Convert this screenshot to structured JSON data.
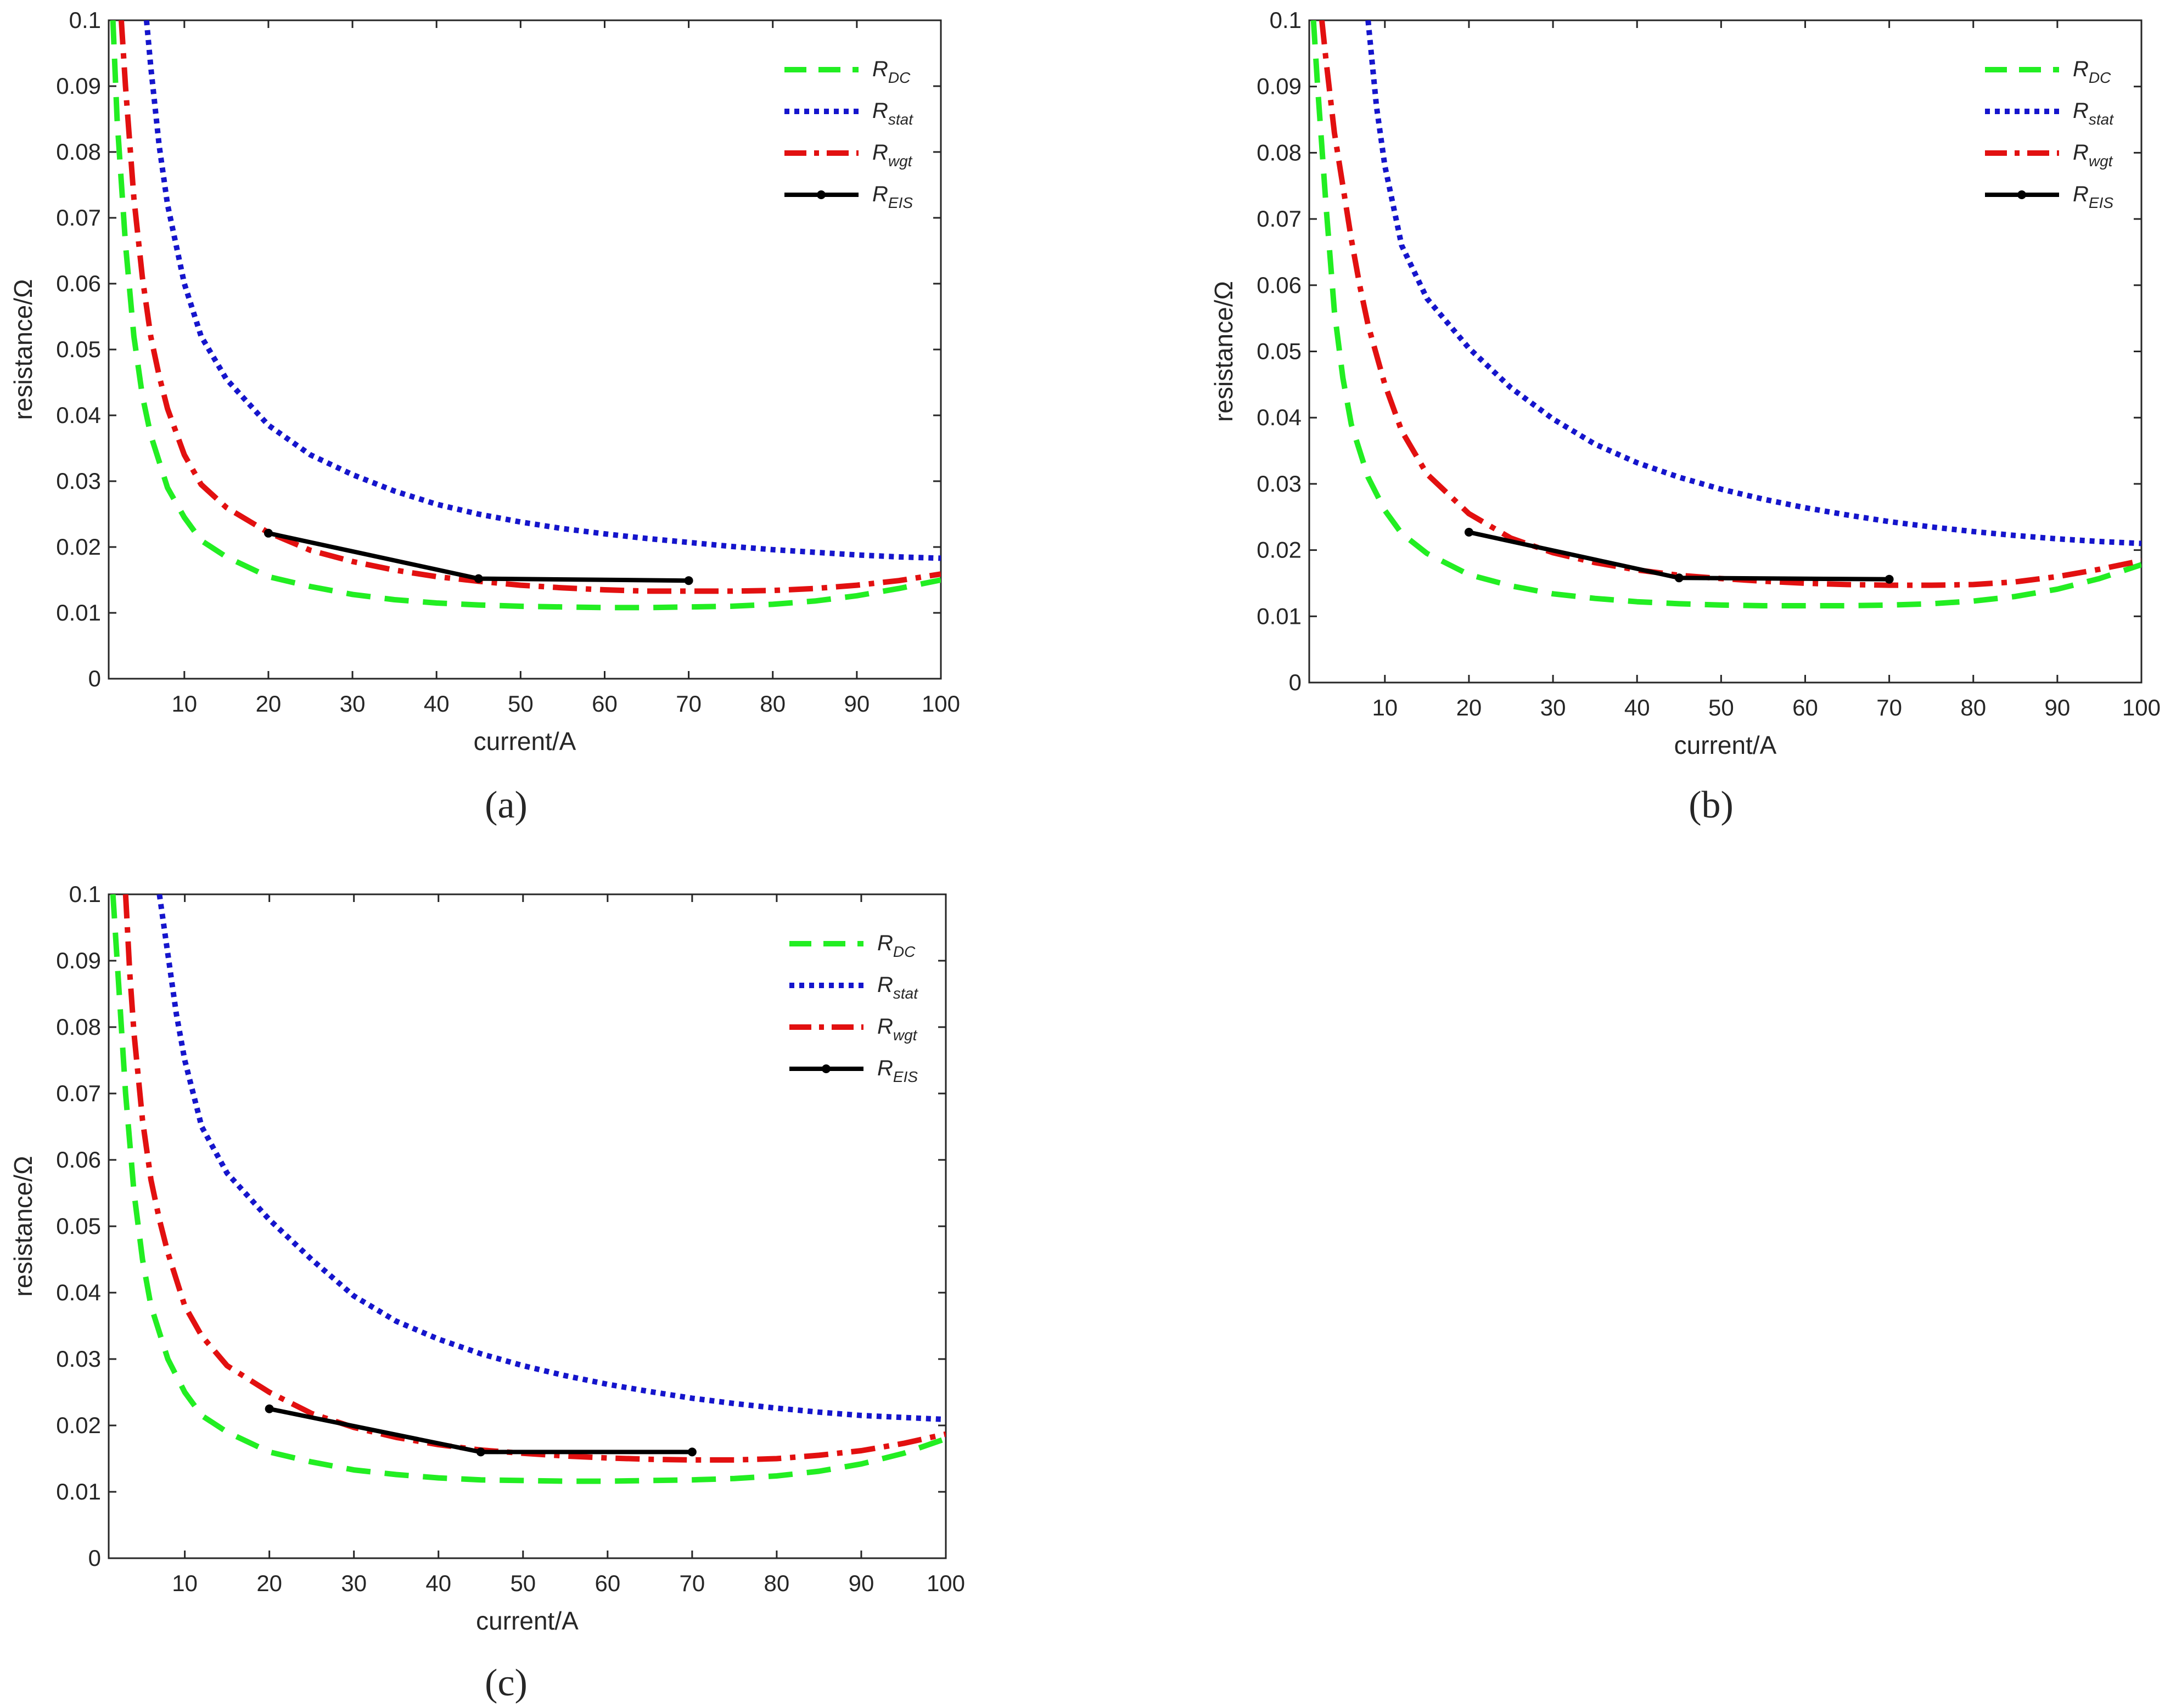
{
  "colors": {
    "R_DC": "#22ee22",
    "R_stat": "#1515cc",
    "R_wgt": "#e21010",
    "R_EIS": "#000000",
    "axis": "#262626"
  },
  "chart_data": [
    {
      "type": "line",
      "caption": "(a)",
      "xlabel": "current/A",
      "ylabel": "resistance/Ω",
      "xlim": [
        1,
        100
      ],
      "ylim": [
        0,
        0.1
      ],
      "xticks": [
        10,
        20,
        30,
        40,
        50,
        60,
        70,
        80,
        90,
        100
      ],
      "xtick_labels": [
        "10",
        "20",
        "30",
        "40",
        "50",
        "60",
        "70",
        "80",
        "90",
        "100"
      ],
      "yticks": [
        0,
        0.01,
        0.02,
        0.03,
        0.04,
        0.05,
        0.06,
        0.07,
        0.08,
        0.09,
        0.1
      ],
      "ytick_labels": [
        "0",
        "0.01",
        "0.02",
        "0.03",
        "0.04",
        "0.05",
        "0.06",
        "0.07",
        "0.08",
        "0.09",
        "0.1"
      ],
      "legend_position": "top-right",
      "series": [
        {
          "key": "R_DC",
          "main": "R",
          "sub": "DC",
          "style": "dashed",
          "x": [
            1.5,
            2,
            3,
            4,
            5,
            6,
            8,
            10,
            12,
            15,
            20,
            25,
            30,
            35,
            40,
            45,
            50,
            55,
            60,
            65,
            70,
            75,
            80,
            85,
            90,
            95,
            100
          ],
          "y": [
            0.1,
            0.085,
            0.066,
            0.052,
            0.043,
            0.037,
            0.029,
            0.0245,
            0.021,
            0.0185,
            0.0155,
            0.014,
            0.0128,
            0.012,
            0.0115,
            0.0112,
            0.011,
            0.0109,
            0.0108,
            0.0108,
            0.0109,
            0.011,
            0.0113,
            0.0118,
            0.0126,
            0.0137,
            0.015
          ]
        },
        {
          "key": "R_stat",
          "main": "R",
          "sub": "stat",
          "style": "dotted",
          "x": [
            5.5,
            6,
            7,
            8,
            10,
            12,
            15,
            20,
            25,
            30,
            35,
            40,
            45,
            50,
            55,
            60,
            65,
            70,
            75,
            80,
            85,
            90,
            95,
            100
          ],
          "y": [
            0.1,
            0.093,
            0.081,
            0.072,
            0.06,
            0.052,
            0.0455,
            0.0385,
            0.034,
            0.031,
            0.0285,
            0.0265,
            0.025,
            0.0238,
            0.0228,
            0.022,
            0.0213,
            0.0207,
            0.0201,
            0.0196,
            0.0192,
            0.0188,
            0.0185,
            0.0183
          ]
        },
        {
          "key": "R_wgt",
          "main": "R",
          "sub": "wgt",
          "style": "dashdot",
          "x": [
            2.5,
            3,
            4,
            5,
            6,
            7,
            8,
            10,
            12,
            15,
            20,
            25,
            30,
            35,
            40,
            45,
            50,
            55,
            60,
            65,
            70,
            75,
            80,
            85,
            90,
            95,
            100
          ],
          "y": [
            0.1,
            0.09,
            0.073,
            0.061,
            0.052,
            0.046,
            0.041,
            0.034,
            0.0295,
            0.026,
            0.0222,
            0.0195,
            0.0178,
            0.0165,
            0.0155,
            0.0148,
            0.0142,
            0.0138,
            0.0135,
            0.0133,
            0.0133,
            0.0133,
            0.0134,
            0.0137,
            0.0142,
            0.0149,
            0.0159
          ]
        },
        {
          "key": "R_EIS",
          "main": "R",
          "sub": "EIS",
          "style": "solid-marker",
          "x": [
            20,
            45,
            70
          ],
          "y": [
            0.0221,
            0.0152,
            0.0149
          ]
        }
      ]
    },
    {
      "type": "line",
      "caption": "(b)",
      "xlabel": "current/A",
      "ylabel": "resistance/Ω",
      "xlim": [
        1,
        100
      ],
      "ylim": [
        0,
        0.1
      ],
      "xticks": [
        10,
        20,
        30,
        40,
        50,
        60,
        70,
        80,
        90,
        100
      ],
      "xtick_labels": [
        "10",
        "20",
        "30",
        "40",
        "50",
        "60",
        "70",
        "80",
        "90",
        "100"
      ],
      "yticks": [
        0,
        0.01,
        0.02,
        0.03,
        0.04,
        0.05,
        0.06,
        0.07,
        0.08,
        0.09,
        0.1
      ],
      "ytick_labels": [
        "0",
        "0.01",
        "0.02",
        "0.03",
        "0.04",
        "0.05",
        "0.06",
        "0.07",
        "0.08",
        "0.09",
        "0.1"
      ],
      "legend_position": "top-right",
      "series": [
        {
          "key": "R_DC",
          "main": "R",
          "sub": "DC",
          "style": "dashed",
          "x": [
            1.5,
            2,
            3,
            4,
            5,
            6,
            8,
            10,
            12,
            15,
            20,
            25,
            30,
            35,
            40,
            45,
            50,
            55,
            60,
            65,
            70,
            75,
            80,
            85,
            90,
            95,
            100
          ],
          "y": [
            0.1,
            0.09,
            0.072,
            0.056,
            0.046,
            0.039,
            0.031,
            0.026,
            0.0225,
            0.0195,
            0.0163,
            0.0146,
            0.0134,
            0.0127,
            0.0122,
            0.0119,
            0.0117,
            0.0116,
            0.0116,
            0.0116,
            0.0117,
            0.0119,
            0.0123,
            0.013,
            0.0141,
            0.0157,
            0.0178
          ]
        },
        {
          "key": "R_stat",
          "main": "R",
          "sub": "stat",
          "style": "dotted",
          "x": [
            8,
            9,
            10,
            12,
            15,
            20,
            25,
            30,
            35,
            40,
            45,
            50,
            55,
            60,
            65,
            70,
            75,
            80,
            85,
            90,
            95,
            100
          ],
          "y": [
            0.1,
            0.087,
            0.078,
            0.066,
            0.058,
            0.0505,
            0.0445,
            0.0398,
            0.036,
            0.0332,
            0.031,
            0.0292,
            0.0277,
            0.0264,
            0.0253,
            0.0243,
            0.0235,
            0.0228,
            0.0222,
            0.0217,
            0.0213,
            0.021
          ]
        },
        {
          "key": "R_wgt",
          "main": "R",
          "sub": "wgt",
          "style": "dashdot",
          "x": [
            2.5,
            3,
            4,
            5,
            6,
            7,
            8,
            10,
            12,
            15,
            20,
            25,
            30,
            35,
            40,
            45,
            50,
            55,
            60,
            65,
            70,
            75,
            80,
            85,
            90,
            95,
            100
          ],
          "y": [
            0.1,
            0.094,
            0.083,
            0.075,
            0.067,
            0.06,
            0.054,
            0.045,
            0.038,
            0.0315,
            0.0255,
            0.0218,
            0.0196,
            0.0181,
            0.017,
            0.0162,
            0.0157,
            0.0153,
            0.015,
            0.0148,
            0.0147,
            0.0147,
            0.0148,
            0.0152,
            0.016,
            0.0171,
            0.0184
          ]
        },
        {
          "key": "R_EIS",
          "main": "R",
          "sub": "EIS",
          "style": "solid-marker",
          "x": [
            20,
            45,
            70
          ],
          "y": [
            0.0227,
            0.0158,
            0.0156
          ]
        }
      ]
    },
    {
      "type": "line",
      "caption": "(c)",
      "xlabel": "current/A",
      "ylabel": "resistance/Ω",
      "xlim": [
        1,
        100
      ],
      "ylim": [
        0,
        0.1
      ],
      "xticks": [
        10,
        20,
        30,
        40,
        50,
        60,
        70,
        80,
        90,
        100
      ],
      "xtick_labels": [
        "10",
        "20",
        "30",
        "40",
        "50",
        "60",
        "70",
        "80",
        "90",
        "100"
      ],
      "yticks": [
        0,
        0.01,
        0.02,
        0.03,
        0.04,
        0.05,
        0.06,
        0.07,
        0.08,
        0.09,
        0.1
      ],
      "ytick_labels": [
        "0",
        "0.01",
        "0.02",
        "0.03",
        "0.04",
        "0.05",
        "0.06",
        "0.07",
        "0.08",
        "0.09",
        "0.1"
      ],
      "legend_position": "top-right",
      "series": [
        {
          "key": "R_DC",
          "main": "R",
          "sub": "DC",
          "style": "dashed",
          "x": [
            1.5,
            2,
            3,
            4,
            5,
            6,
            8,
            10,
            12,
            15,
            20,
            25,
            30,
            35,
            40,
            45,
            50,
            55,
            60,
            65,
            70,
            75,
            80,
            85,
            90,
            95,
            100
          ],
          "y": [
            0.1,
            0.09,
            0.07,
            0.055,
            0.045,
            0.038,
            0.03,
            0.025,
            0.0215,
            0.019,
            0.016,
            0.0145,
            0.0133,
            0.0126,
            0.0121,
            0.0118,
            0.0117,
            0.0116,
            0.0116,
            0.0117,
            0.0118,
            0.012,
            0.0124,
            0.0131,
            0.0142,
            0.0158,
            0.018
          ]
        },
        {
          "key": "R_stat",
          "main": "R",
          "sub": "stat",
          "style": "dotted",
          "x": [
            7,
            8,
            9,
            10,
            12,
            15,
            20,
            25,
            30,
            35,
            40,
            45,
            50,
            55,
            60,
            65,
            70,
            75,
            80,
            85,
            90,
            95,
            100
          ],
          "y": [
            0.1,
            0.091,
            0.082,
            0.075,
            0.065,
            0.058,
            0.051,
            0.045,
            0.0395,
            0.0357,
            0.033,
            0.0308,
            0.029,
            0.0275,
            0.0262,
            0.0251,
            0.0241,
            0.0233,
            0.0226,
            0.022,
            0.0215,
            0.0212,
            0.0209
          ]
        },
        {
          "key": "R_wgt",
          "main": "R",
          "sub": "wgt",
          "style": "dashdot",
          "x": [
            3,
            3.5,
            4,
            5,
            6,
            7,
            8,
            10,
            12,
            15,
            20,
            25,
            30,
            35,
            40,
            45,
            50,
            55,
            60,
            65,
            70,
            75,
            80,
            85,
            90,
            95,
            100
          ],
          "y": [
            0.1,
            0.088,
            0.079,
            0.066,
            0.057,
            0.051,
            0.046,
            0.038,
            0.0335,
            0.029,
            0.025,
            0.0218,
            0.0197,
            0.0182,
            0.0171,
            0.0163,
            0.0158,
            0.0154,
            0.0151,
            0.0149,
            0.0148,
            0.0148,
            0.015,
            0.0155,
            0.0162,
            0.0173,
            0.0187
          ]
        },
        {
          "key": "R_EIS",
          "main": "R",
          "sub": "EIS",
          "style": "solid-marker",
          "x": [
            20,
            45,
            70
          ],
          "y": [
            0.0225,
            0.016,
            0.016
          ]
        }
      ]
    }
  ]
}
